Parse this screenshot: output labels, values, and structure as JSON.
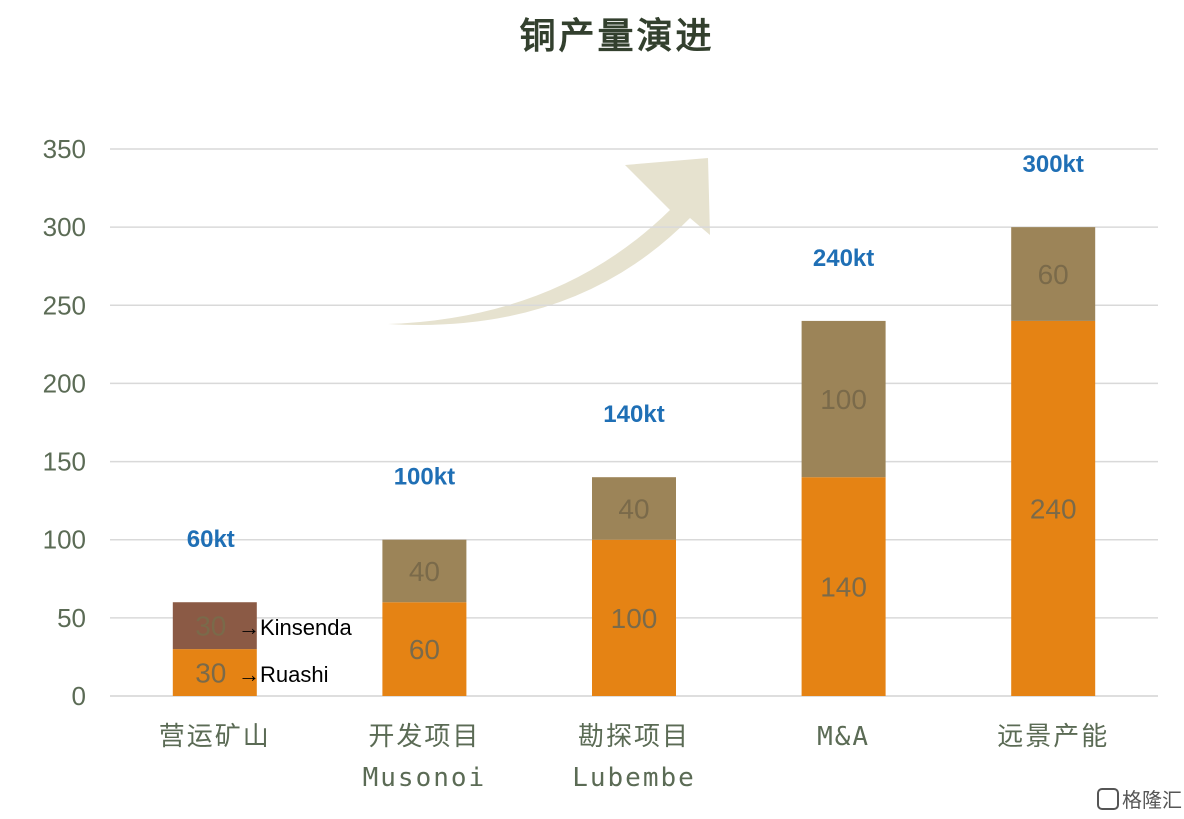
{
  "chart_data": {
    "type": "bar",
    "stacked": true,
    "title": "铜产量演进",
    "categories": [
      [
        "营运矿山"
      ],
      [
        "开发项目",
        "Musonoi"
      ],
      [
        "勘探项目",
        "Lubembe"
      ],
      [
        "M&A"
      ],
      [
        "远景产能"
      ]
    ],
    "series": [
      {
        "values": [
          30,
          60,
          100,
          140,
          240
        ],
        "color": "#e58314"
      },
      {
        "values": [
          30,
          40,
          40,
          100,
          60
        ],
        "color": "#9c8458"
      }
    ],
    "first_bar_top_color": "#8b5a45",
    "totals": [
      "60kt",
      "100kt",
      "140kt",
      "240kt",
      "300kt"
    ],
    "segment_labels": [
      [
        "30",
        "30"
      ],
      [
        "60",
        "40"
      ],
      [
        "100",
        "40"
      ],
      [
        "140",
        "100"
      ],
      [
        "240",
        "60"
      ]
    ],
    "annotations": [
      "→Ruashi",
      "→Kinsenda"
    ],
    "ylim": [
      0,
      350
    ],
    "yticks": [
      0,
      50,
      100,
      150,
      200,
      250,
      300,
      350
    ],
    "grid": true
  },
  "watermark": "格隆汇",
  "decorations": {
    "arrow_color": "#e6e2cf"
  }
}
